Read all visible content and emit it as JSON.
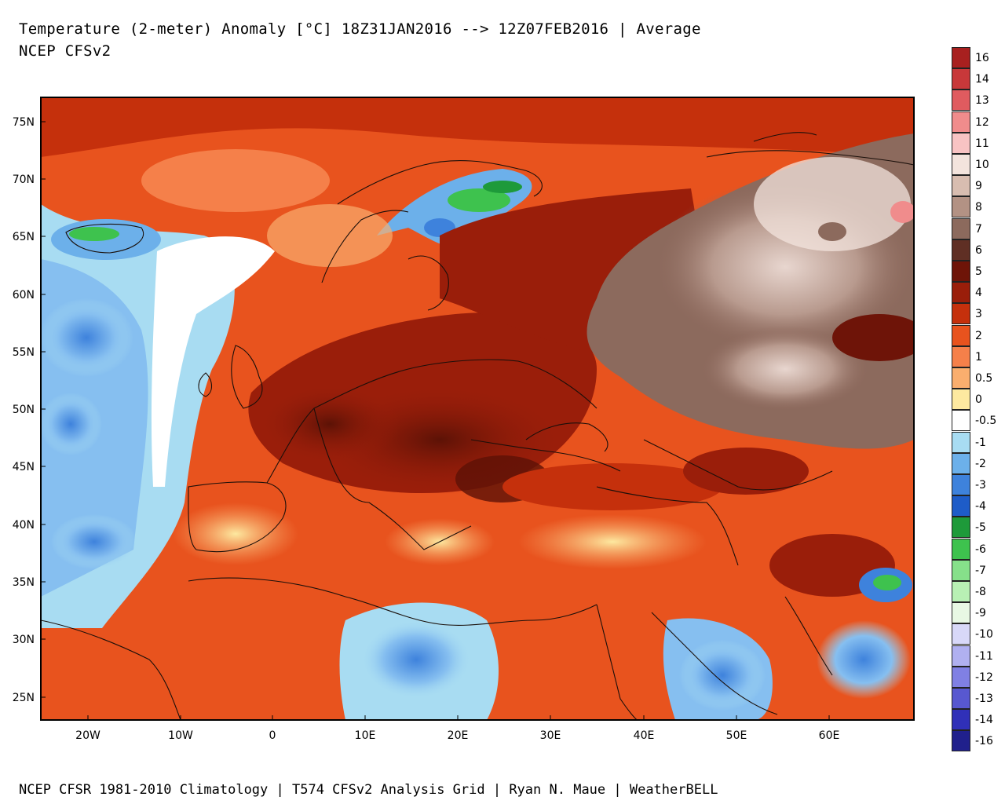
{
  "header": {
    "title": "Temperature (2-meter) Anomaly  [°C] 18Z31JAN2016 --> 12Z07FEB2016 | Average",
    "subtitle": "NCEP CFSv2"
  },
  "footer": {
    "credit": "NCEP CFSR 1981-2010 Climatology | T574 CFSv2 Analysis Grid | Ryan N. Maue | WeatherBELL"
  },
  "map": {
    "lat_labels": [
      "75N",
      "70N",
      "65N",
      "60N",
      "55N",
      "50N",
      "45N",
      "40N",
      "35N",
      "30N",
      "25N"
    ],
    "lon_labels": [
      "20W",
      "10W",
      "0",
      "10E",
      "20E",
      "30E",
      "40E",
      "50E",
      "60E"
    ],
    "colors": {
      "frame": "#000000",
      "land_outline": "#1a0f0a"
    }
  },
  "legend": {
    "items": [
      {
        "label": "16",
        "color": "#a8201f"
      },
      {
        "label": "14",
        "color": "#c8383a"
      },
      {
        "label": "13",
        "color": "#e05b5f"
      },
      {
        "label": "12",
        "color": "#f08c8c"
      },
      {
        "label": "11",
        "color": "#f8c3c3"
      },
      {
        "label": "10",
        "color": "#f3e4dd"
      },
      {
        "label": "9",
        "color": "#d8bdb0"
      },
      {
        "label": "8",
        "color": "#b39284"
      },
      {
        "label": "7",
        "color": "#8c6a5d"
      },
      {
        "label": "6",
        "color": "#5f2f24"
      },
      {
        "label": "5",
        "color": "#6e1408"
      },
      {
        "label": "4",
        "color": "#9a1e0a"
      },
      {
        "label": "3",
        "color": "#c5300c"
      },
      {
        "label": "2",
        "color": "#e8531e"
      },
      {
        "label": "1",
        "color": "#f5804a"
      },
      {
        "label": "0.5",
        "color": "#faae6e"
      },
      {
        "label": "0",
        "color": "#fde9a0"
      },
      {
        "label": "-0.5",
        "color": "#ffffff"
      },
      {
        "label": "-1",
        "color": "#a8dcf2"
      },
      {
        "label": "-2",
        "color": "#6cb0ea"
      },
      {
        "label": "-3",
        "color": "#3e82dc"
      },
      {
        "label": "-4",
        "color": "#1e5cc8"
      },
      {
        "label": "-5",
        "color": "#1e9a3a"
      },
      {
        "label": "-6",
        "color": "#3ec24e"
      },
      {
        "label": "-7",
        "color": "#86e08a"
      },
      {
        "label": "-8",
        "color": "#b8f0b4"
      },
      {
        "label": "-9",
        "color": "#e8f8e4"
      },
      {
        "label": "-10",
        "color": "#d8d8f8"
      },
      {
        "label": "-11",
        "color": "#b0b0f0"
      },
      {
        "label": "-12",
        "color": "#8080e4"
      },
      {
        "label": "-13",
        "color": "#5858d0"
      },
      {
        "label": "-14",
        "color": "#3030b8"
      },
      {
        "label": "-16",
        "color": "#20208c"
      }
    ],
    "labels": [
      "16",
      "14",
      "13",
      "12",
      "11",
      "10",
      "9",
      "8",
      "7",
      "6",
      "5",
      "4",
      "3",
      "2",
      "1",
      "0.5",
      "0",
      "-0.5",
      "-1",
      "-2",
      "-3",
      "-4",
      "-5",
      "-6",
      "-7",
      "-8",
      "-9",
      "-10",
      "-11",
      "-12",
      "-13",
      "-14",
      "-16"
    ],
    "swatch_colors": [
      "#a8201f",
      "#c8383a",
      "#e05b5f",
      "#f08c8c",
      "#f8c3c3",
      "#f3e4dd",
      "#d8bdb0",
      "#b39284",
      "#8c6a5d",
      "#5f2f24",
      "#6e1408",
      "#9a1e0a",
      "#c5300c",
      "#e8531e",
      "#f5804a",
      "#faae6e",
      "#fde9a0",
      "#ffffff",
      "#a8dcf2",
      "#6cb0ea",
      "#3e82dc",
      "#1e5cc8",
      "#1e9a3a",
      "#3ec24e",
      "#86e08a",
      "#b8f0b4",
      "#e8f8e4",
      "#d8d8f8",
      "#b0b0f0",
      "#8080e4",
      "#5858d0",
      "#3030b8",
      "#20208c",
      "#4a0a5a",
      "#6a1a7a",
      "#a020a0",
      "#e040d0",
      "#f070e0",
      "#f8a8f0"
    ]
  }
}
